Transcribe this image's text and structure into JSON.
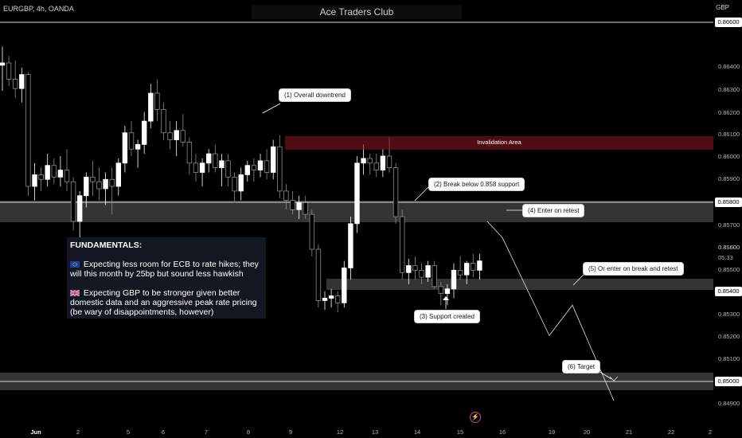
{
  "header": {
    "symbol": "EURGBP, 4h, OANDA",
    "watermark": "Ace Traders Club",
    "currency": "GBP"
  },
  "annotations": {
    "n1": "(1) Overall downtrend",
    "n2": "(2) Break below 0.858 support",
    "n3": "(3) Support created",
    "n4": "(4) Enter on retest",
    "n5": "(5) Or enter on break and retest",
    "n6": "(6) Target",
    "invalidation": "Invalidation Area"
  },
  "fundamentals": {
    "title": "FUNDAMENTALS:",
    "p1": "Expecting less room for ECB to rate hikes; they will this month by 25bp but sound less hawkish",
    "p2": "Expecting GBP to be stronger given better domestic data and an aggressive peak rate pricing (be wary of disappointments, however)"
  },
  "price_axis": {
    "ticks": [
      "0.86400",
      "0.86300",
      "0.86200",
      "0.86100",
      "0.86000",
      "0.85900",
      "0.85700",
      "0.85600",
      "0.85500",
      "0.85300",
      "0.85200",
      "0.85100",
      "0.84900"
    ],
    "tags": [
      "0.86600",
      "0.85800",
      "0.85400",
      "0.85000"
    ],
    "last_price": "0.85600",
    "countdown": "05:33"
  },
  "time_axis": [
    "Jun",
    "2",
    "5",
    "6",
    "7",
    "8",
    "9",
    "12",
    "13",
    "14",
    "15",
    "16",
    "19",
    "20",
    "21",
    "22",
    "2"
  ],
  "chart_data": {
    "type": "candlestick",
    "symbol": "EURGBP",
    "interval": "4h",
    "source": "OANDA",
    "ylim": [
      0.8484,
      0.8672
    ],
    "key_levels": [
      0.866,
      0.858,
      0.854,
      0.85
    ],
    "candles": [
      [
        0.8644,
        0.8652,
        0.8633,
        0.8645
      ],
      [
        0.8645,
        0.8648,
        0.8635,
        0.8638
      ],
      [
        0.8638,
        0.8646,
        0.863,
        0.8634
      ],
      [
        0.8634,
        0.8643,
        0.8628,
        0.864
      ],
      [
        0.864,
        0.8641,
        0.8588,
        0.8592
      ],
      [
        0.8592,
        0.8602,
        0.8586,
        0.8597
      ],
      [
        0.8597,
        0.86,
        0.859,
        0.8595
      ],
      [
        0.8595,
        0.8606,
        0.8592,
        0.8601
      ],
      [
        0.8601,
        0.8604,
        0.8593,
        0.8596
      ],
      [
        0.8596,
        0.8605,
        0.8592,
        0.8599
      ],
      [
        0.8599,
        0.8608,
        0.859,
        0.8594
      ],
      [
        0.8594,
        0.8596,
        0.8573,
        0.8577
      ],
      [
        0.8577,
        0.859,
        0.8568,
        0.8588
      ],
      [
        0.8588,
        0.8598,
        0.8583,
        0.8596
      ],
      [
        0.8596,
        0.8603,
        0.8588,
        0.8594
      ],
      [
        0.8594,
        0.86,
        0.8586,
        0.8591
      ],
      [
        0.8591,
        0.8598,
        0.8584,
        0.8595
      ],
      [
        0.8595,
        0.86,
        0.858,
        0.8592
      ],
      [
        0.8592,
        0.8604,
        0.8588,
        0.8602
      ],
      [
        0.8602,
        0.8618,
        0.8598,
        0.8615
      ],
      [
        0.8615,
        0.862,
        0.8605,
        0.8608
      ],
      [
        0.8608,
        0.8612,
        0.86,
        0.861
      ],
      [
        0.861,
        0.8624,
        0.8606,
        0.862
      ],
      [
        0.862,
        0.8636,
        0.8617,
        0.8632
      ],
      [
        0.8632,
        0.8638,
        0.862,
        0.8625
      ],
      [
        0.8625,
        0.8628,
        0.8612,
        0.8615
      ],
      [
        0.8615,
        0.862,
        0.8608,
        0.8612
      ],
      [
        0.8612,
        0.862,
        0.8605,
        0.8616
      ],
      [
        0.8616,
        0.8623,
        0.8609,
        0.8611
      ],
      [
        0.8611,
        0.8613,
        0.8597,
        0.8602
      ],
      [
        0.8602,
        0.8606,
        0.8594,
        0.8598
      ],
      [
        0.8598,
        0.8604,
        0.8592,
        0.8602
      ],
      [
        0.8602,
        0.8608,
        0.8598,
        0.8606
      ],
      [
        0.8606,
        0.861,
        0.8598,
        0.86
      ],
      [
        0.86,
        0.8606,
        0.8592,
        0.8603
      ],
      [
        0.8603,
        0.8606,
        0.8592,
        0.8596
      ],
      [
        0.8596,
        0.8598,
        0.8585,
        0.859
      ],
      [
        0.859,
        0.86,
        0.8586,
        0.8597
      ],
      [
        0.8597,
        0.8603,
        0.8594,
        0.8601
      ],
      [
        0.8601,
        0.8604,
        0.8594,
        0.8599
      ],
      [
        0.8599,
        0.8606,
        0.8596,
        0.8603
      ],
      [
        0.8603,
        0.8608,
        0.8595,
        0.8598
      ],
      [
        0.8598,
        0.8612,
        0.8595,
        0.8609
      ],
      [
        0.8609,
        0.8614,
        0.8587,
        0.859
      ],
      [
        0.859,
        0.8593,
        0.8582,
        0.8586
      ],
      [
        0.8586,
        0.859,
        0.858,
        0.8582
      ],
      [
        0.8582,
        0.8588,
        0.8578,
        0.8585
      ],
      [
        0.8585,
        0.8588,
        0.8578,
        0.858
      ],
      [
        0.858,
        0.8582,
        0.8562,
        0.8565
      ],
      [
        0.8565,
        0.8567,
        0.854,
        0.8543
      ],
      [
        0.8543,
        0.8547,
        0.8539,
        0.8544
      ],
      [
        0.8544,
        0.8548,
        0.854,
        0.8545
      ],
      [
        0.8545,
        0.8547,
        0.8538,
        0.8542
      ],
      [
        0.8542,
        0.856,
        0.854,
        0.8557
      ],
      [
        0.8557,
        0.8579,
        0.8552,
        0.8576
      ],
      [
        0.8576,
        0.8605,
        0.8572,
        0.8602
      ],
      [
        0.8602,
        0.861,
        0.8597,
        0.8604
      ],
      [
        0.8604,
        0.8606,
        0.8597,
        0.8602
      ],
      [
        0.8602,
        0.8606,
        0.8596,
        0.8599
      ],
      [
        0.8599,
        0.8608,
        0.8596,
        0.8605
      ],
      [
        0.8605,
        0.8613,
        0.8598,
        0.86
      ],
      [
        0.86,
        0.8602,
        0.8576,
        0.8579
      ],
      [
        0.8579,
        0.8582,
        0.8552,
        0.8555
      ],
      [
        0.8555,
        0.8561,
        0.855,
        0.8558
      ],
      [
        0.8558,
        0.8562,
        0.8552,
        0.8556
      ],
      [
        0.8556,
        0.8559,
        0.855,
        0.8553
      ],
      [
        0.8553,
        0.856,
        0.8551,
        0.8558
      ],
      [
        0.8558,
        0.856,
        0.8548,
        0.8549
      ],
      [
        0.8549,
        0.8551,
        0.8541,
        0.8546
      ],
      [
        0.8546,
        0.855,
        0.8541,
        0.8548
      ],
      [
        0.8548,
        0.8559,
        0.8544,
        0.8556
      ],
      [
        0.8556,
        0.8562,
        0.8552,
        0.8554
      ],
      [
        0.8554,
        0.856,
        0.855,
        0.8559
      ],
      [
        0.8559,
        0.8563,
        0.8553,
        0.8556
      ],
      [
        0.8556,
        0.8563,
        0.8552,
        0.856
      ]
    ],
    "projection": [
      [
        0.8577,
        0.857
      ],
      [
        0.8528,
        0.8541
      ],
      [
        0.85,
        0.85
      ]
    ]
  },
  "colors": {
    "up": "#ffffff",
    "down": "#8d8d8d",
    "background": "#000000"
  }
}
